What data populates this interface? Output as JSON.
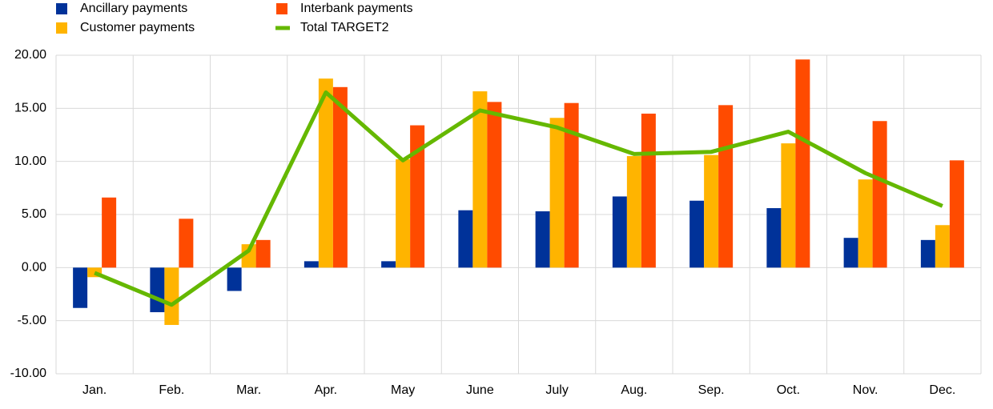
{
  "chart_data": {
    "type": "bar-line",
    "categories": [
      "Jan.",
      "Feb.",
      "Mar.",
      "Apr.",
      "May",
      "June",
      "July",
      "Aug.",
      "Sep.",
      "Oct.",
      "Nov.",
      "Dec."
    ],
    "series": [
      {
        "name": "Ancillary payments",
        "type": "bar",
        "color": "#003299",
        "values": [
          -3.8,
          -4.2,
          -2.2,
          0.6,
          0.6,
          5.4,
          5.3,
          6.7,
          6.3,
          5.6,
          2.8,
          2.6
        ]
      },
      {
        "name": "Customer payments",
        "type": "bar",
        "color": "#ffb400",
        "values": [
          -0.9,
          -5.4,
          2.2,
          17.8,
          10.2,
          16.6,
          14.1,
          10.5,
          10.6,
          11.7,
          8.3,
          4.0
        ]
      },
      {
        "name": "Interbank payments",
        "type": "bar",
        "color": "#ff4b00",
        "values": [
          6.6,
          4.6,
          2.6,
          17.0,
          13.4,
          15.6,
          15.5,
          14.5,
          15.3,
          19.6,
          13.8,
          10.1
        ]
      },
      {
        "name": "Total TARGET2",
        "type": "line",
        "color": "#65b800",
        "values": [
          -0.5,
          -3.5,
          1.6,
          16.5,
          10.1,
          14.8,
          13.2,
          10.7,
          10.9,
          12.8,
          8.9,
          5.8
        ]
      }
    ],
    "ylim": [
      -10,
      20
    ],
    "yticks": [
      {
        "value": -10,
        "label": "-10.00"
      },
      {
        "value": -5,
        "label": "-5.00"
      },
      {
        "value": 0,
        "label": "0.00"
      },
      {
        "value": 5,
        "label": "5.00"
      },
      {
        "value": 10,
        "label": "10.00"
      },
      {
        "value": 15,
        "label": "15.00"
      },
      {
        "value": 20,
        "label": "20.00"
      }
    ],
    "grid": true
  }
}
